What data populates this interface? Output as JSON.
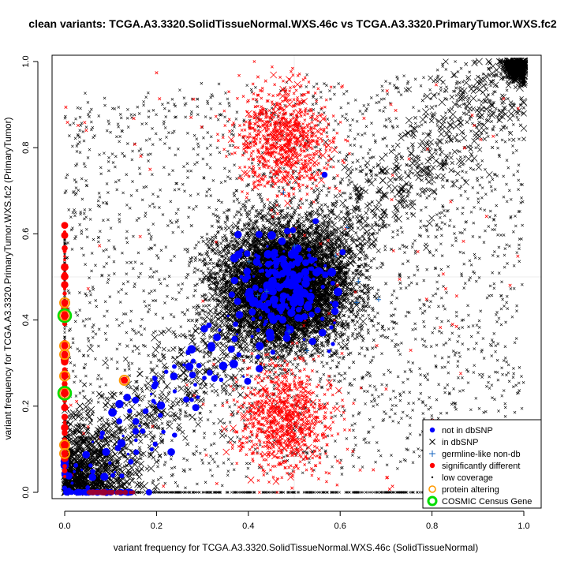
{
  "chart_data": {
    "type": "scatter",
    "title": "clean variants: TCGA.A3.3320.SolidTissueNormal.WXS.46c vs TCGA.A3.3320.PrimaryTumor.WXS.fc2",
    "xlabel": "variant frequency for TCGA.A3.3320.SolidTissueNormal.WXS.46c (SolidTissueNormal)",
    "ylabel": "variant frequency for TCGA.A3.3320.PrimaryTumor.WXS.fc2 (PrimaryTumor)",
    "xlim": [
      0,
      1
    ],
    "ylim": [
      0,
      1
    ],
    "x_ticks": [
      "0.0",
      "0.2",
      "0.4",
      "0.6",
      "0.8",
      "1.0"
    ],
    "y_ticks": [
      "0.0",
      "0.2",
      "0.4",
      "0.6",
      "0.8",
      "1.0"
    ],
    "grid": true,
    "legend_position": "bottom-right",
    "legend": [
      {
        "label": "not in dbSNP",
        "marker": "filled-circle",
        "color": "#0000ff"
      },
      {
        "label": "in dbSNP",
        "marker": "cross",
        "color": "#000000"
      },
      {
        "label": "germline-like non-db",
        "marker": "plus",
        "color": "#1565c0"
      },
      {
        "label": "significantly different",
        "marker": "filled-circle",
        "color": "#ff0000"
      },
      {
        "label": "low coverage",
        "marker": "small-dot",
        "color": "#000000"
      },
      {
        "label": "protein altering",
        "marker": "open-circle",
        "color": "#ff9900"
      },
      {
        "label": "COSMIC Census Gene",
        "marker": "open-circle-thick",
        "color": "#00dd00"
      }
    ],
    "clusters": [
      {
        "series": "in dbSNP",
        "description": "heterozygous core",
        "cx": 0.48,
        "cy": 0.48,
        "sx": 0.07,
        "sy": 0.07
      },
      {
        "series": "in dbSNP",
        "description": "homozygous corner",
        "cx": 0.99,
        "cy": 0.99,
        "sx": 0.015,
        "sy": 0.015
      },
      {
        "series": "significantly different",
        "description": "upper cluster",
        "cx": 0.48,
        "cy": 0.82,
        "sx": 0.05,
        "sy": 0.06
      },
      {
        "series": "significantly different",
        "description": "lower cluster",
        "cx": 0.48,
        "cy": 0.17,
        "sx": 0.05,
        "sy": 0.06
      },
      {
        "series": "not in dbSNP",
        "description": "heterozygous core",
        "cx": 0.48,
        "cy": 0.48,
        "sx": 0.045,
        "sy": 0.06
      }
    ],
    "highlighted_points": [
      {
        "x": 0.0,
        "y": 0.41,
        "series": "COSMIC Census Gene"
      },
      {
        "x": 0.0,
        "y": 0.23,
        "series": "COSMIC Census Gene"
      },
      {
        "x": 0.0,
        "y": 0.34,
        "series": "protein altering"
      },
      {
        "x": 0.0,
        "y": 0.32,
        "series": "protein altering"
      },
      {
        "x": 0.0,
        "y": 0.44,
        "series": "protein altering"
      },
      {
        "x": 0.0,
        "y": 0.27,
        "series": "protein altering"
      },
      {
        "x": 0.0,
        "y": 0.11,
        "series": "protein altering"
      },
      {
        "x": 0.0,
        "y": 0.09,
        "series": "protein altering"
      },
      {
        "x": 0.13,
        "y": 0.26,
        "series": "protein altering"
      }
    ]
  }
}
